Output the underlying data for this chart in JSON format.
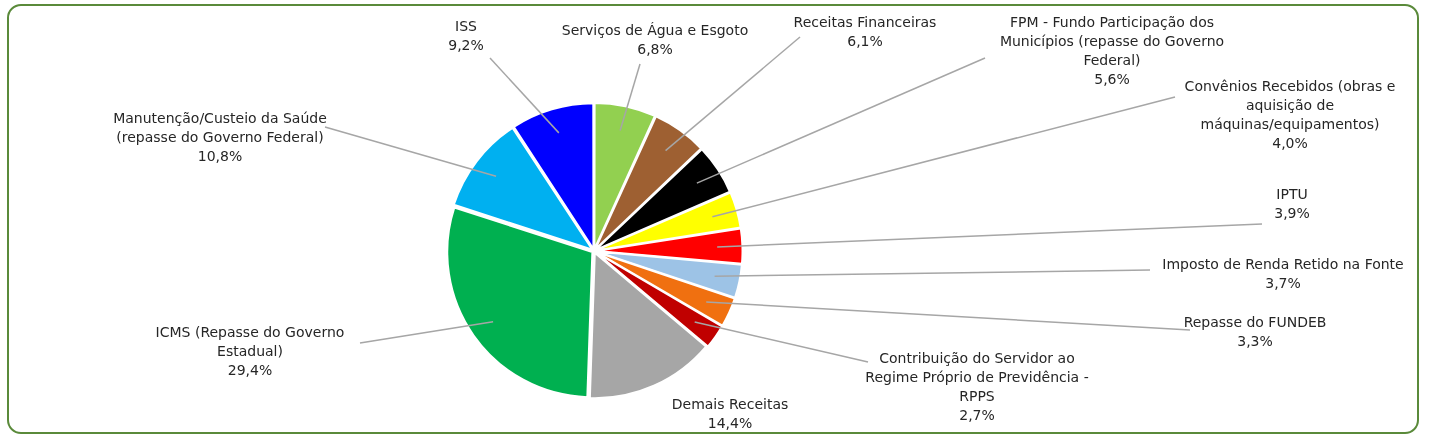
{
  "chart_data": {
    "type": "pie",
    "categories": [
      "Serviços de Água e Esgoto",
      "Receitas Financeiras",
      "FPM - Fundo Participação dos Municípios (repasse do Governo Federal)",
      "Convênios Recebidos (obras e aquisição de máquinas/equipamentos)",
      "IPTU",
      "Imposto de Renda Retido na Fonte",
      "Repasse do FUNDEB",
      "Contribuição do Servidor ao Regime Próprio de Previdência - RPPS",
      "Demais Receitas",
      "ICMS (Repasse do Governo Estadual)",
      "Manutenção/Custeio da Saúde (repasse do Governo Federal)",
      "ISS"
    ],
    "values": [
      6.8,
      6.1,
      5.6,
      4.0,
      3.9,
      3.7,
      3.3,
      2.7,
      14.4,
      29.4,
      10.8,
      9.2
    ],
    "value_labels": [
      "6,8%",
      "6,1%",
      "5,6%",
      "4,0%",
      "3,9%",
      "3,7%",
      "3,3%",
      "2,7%",
      "14,4%",
      "29,4%",
      "10,8%",
      "9,2%"
    ],
    "colors": [
      "#92d050",
      "#9e6032",
      "#000000",
      "#ffff00",
      "#ff0000",
      "#9dc3e6",
      "#f07010",
      "#c00000",
      "#a6a6a6",
      "#00b050",
      "#00b0f0",
      "#0000ff"
    ],
    "legend": false
  }
}
